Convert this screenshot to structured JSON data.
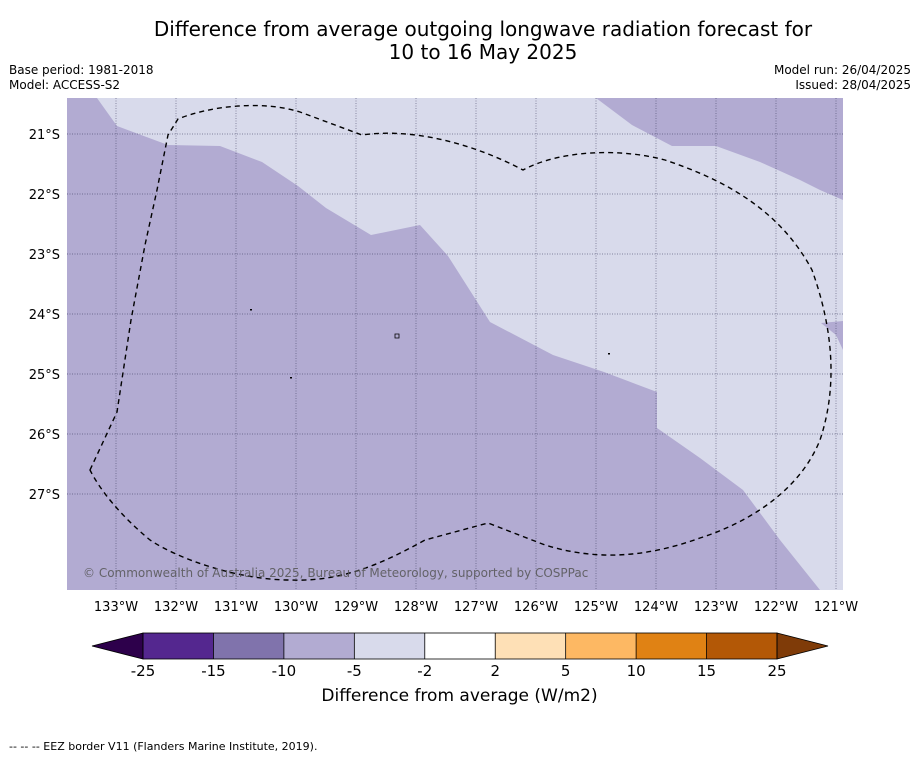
{
  "title_line1": "Difference from average outgoing longwave radiation forecast for",
  "title_line2": "10 to 16 May 2025",
  "base_period": "Base period: 1981-2018",
  "model": "Model: ACCESS-S2",
  "model_run": "Model run: 26/04/2025",
  "issued": "Issued: 28/04/2025",
  "copyright": "© Commonwealth of Australia 2025, Bureau of Meteorology, supported by COSPPac",
  "lon_labels": [
    "133°W",
    "132°W",
    "131°W",
    "130°W",
    "129°W",
    "128°W",
    "127°W",
    "126°W",
    "125°W",
    "124°W",
    "123°W",
    "122°W",
    "121°W"
  ],
  "lat_labels": [
    "21°S",
    "22°S",
    "23°S",
    "24°S",
    "25°S",
    "26°S",
    "27°S"
  ],
  "colorbar": {
    "ticks": [
      "-25",
      "-15",
      "-10",
      "-5",
      "-2",
      "2",
      "5",
      "10",
      "15",
      "25"
    ],
    "colors": [
      "#54278f",
      "#8073ac",
      "#b2abd2",
      "#d8daeb",
      "#ffffff",
      "#fee0b6",
      "#fdb863",
      "#e08214",
      "#b35806"
    ],
    "under_color": "#2d004b",
    "over_color": "#7f3b08",
    "label": "Difference from average (W/m2)"
  },
  "footer": "--  --  -- EEZ border V11 (Flanders Marine Institute, 2019)."
}
